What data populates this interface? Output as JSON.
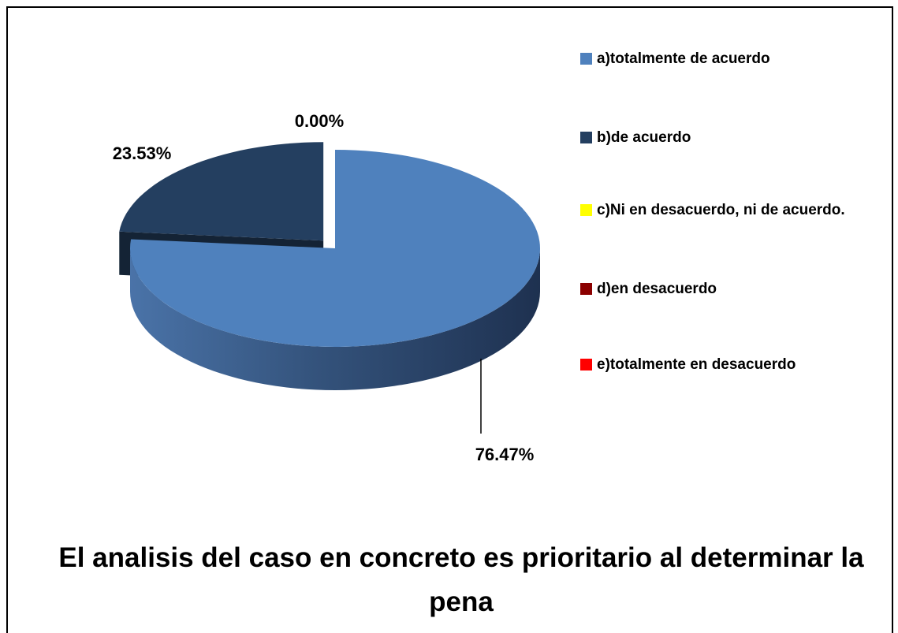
{
  "chart_data": {
    "type": "pie",
    "title": "El analisis del caso en concreto es prioritario al determinar la pena",
    "categories": [
      "a)totalmente de acuerdo",
      "b)de acuerdo",
      "c)Ni en desacuerdo, ni de acuerdo.",
      "d)en desacuerdo",
      "e)totalmente en desacuerdo"
    ],
    "values": [
      76.47,
      23.53,
      0,
      0,
      0
    ],
    "value_labels": [
      "76.47%",
      "23.53%",
      "0.00%",
      null,
      null
    ],
    "colors": [
      "#4f81bd",
      "#243f60",
      "#ffff00",
      "#8b0000",
      "#ff0000"
    ],
    "legend": "right"
  }
}
